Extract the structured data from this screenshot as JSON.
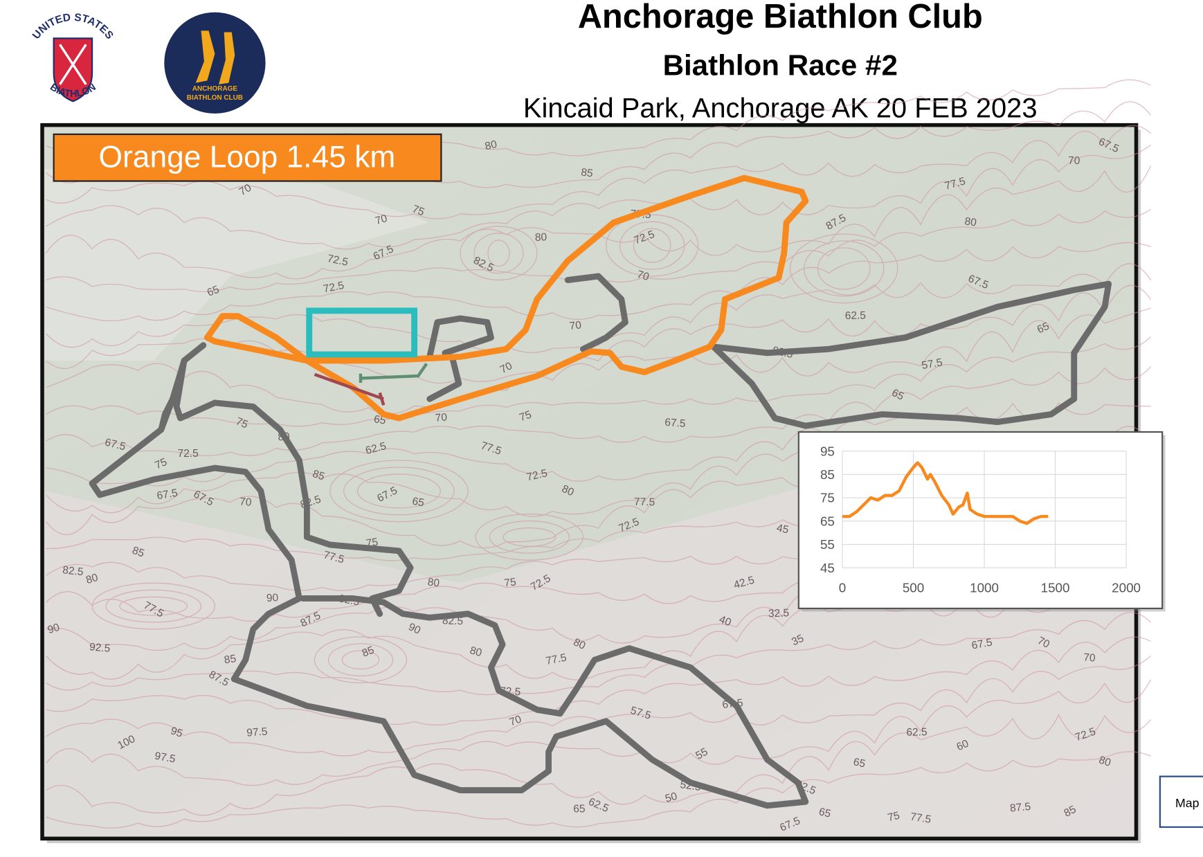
{
  "header": {
    "title": "Anchorage Biathlon Club",
    "subtitle": "Biathlon Race #2",
    "location": "Kincaid Park, Anchorage AK 20 FEB 2023"
  },
  "logos": {
    "left_top": "UNITED STATES",
    "left_bottom": "BIATHLON",
    "right_lines": [
      "ANCHORAGE",
      "BIATHLON CLUB"
    ]
  },
  "map": {
    "loop_label": "Orange Loop 1.45 km",
    "loop_color": "#f7891f",
    "trail_color": "#6b6b6b",
    "contour_labels": [
      70,
      85,
      70,
      75,
      80,
      67.5,
      72.5,
      72.5,
      82.5,
      77.5,
      72.5,
      70,
      70,
      87.5,
      80,
      77.5,
      67.5,
      62.5,
      65,
      82.5,
      57.5,
      65,
      67.5,
      75,
      77.5,
      70,
      70,
      65,
      62.5,
      75,
      72.5,
      75,
      67.5,
      67.5,
      67.5,
      70,
      82.5,
      85,
      80,
      67.5,
      65,
      72.5,
      80,
      77.5,
      72.5,
      77.5,
      75,
      77.5,
      82.5,
      80,
      85,
      90,
      87.5,
      82.5,
      85,
      90,
      82.5,
      85,
      80,
      75,
      72.5,
      80,
      42.5,
      40,
      32.5,
      35,
      45,
      77.5,
      80,
      72.5,
      70,
      57.5,
      67.5,
      55,
      52.5,
      50,
      62.5,
      62.5,
      60,
      65,
      67.5,
      70,
      70,
      72.5,
      80,
      87.5,
      85,
      77.5,
      75,
      62.5,
      65,
      67.5,
      65,
      85,
      87.5,
      92.5,
      90,
      95,
      97.5,
      100,
      97.5,
      80,
      67.5,
      70,
      65
    ]
  },
  "side_label": "Map",
  "chart_data": {
    "type": "line",
    "x": [
      0,
      50,
      100,
      150,
      200,
      250,
      300,
      350,
      400,
      450,
      500,
      530,
      560,
      600,
      620,
      650,
      700,
      750,
      780,
      820,
      850,
      880,
      900,
      950,
      1000,
      1050,
      1100,
      1150,
      1200,
      1250,
      1300,
      1350,
      1400,
      1450
    ],
    "series": [
      {
        "color": "#f7891f",
        "values": [
          67,
          67,
          69,
          72,
          75,
          74,
          76,
          76,
          78,
          84,
          88,
          90,
          88,
          83,
          85,
          82,
          76,
          72,
          68,
          71,
          72,
          77,
          70,
          68,
          67,
          67,
          67,
          67,
          67,
          65,
          64,
          66,
          67,
          67
        ]
      }
    ],
    "xlim": [
      0,
      2000
    ],
    "ylim": [
      45,
      95
    ],
    "xticks": [
      0,
      500,
      1000,
      1500,
      2000
    ],
    "yticks": [
      45,
      55,
      65,
      75,
      85,
      95
    ],
    "grid": true
  }
}
